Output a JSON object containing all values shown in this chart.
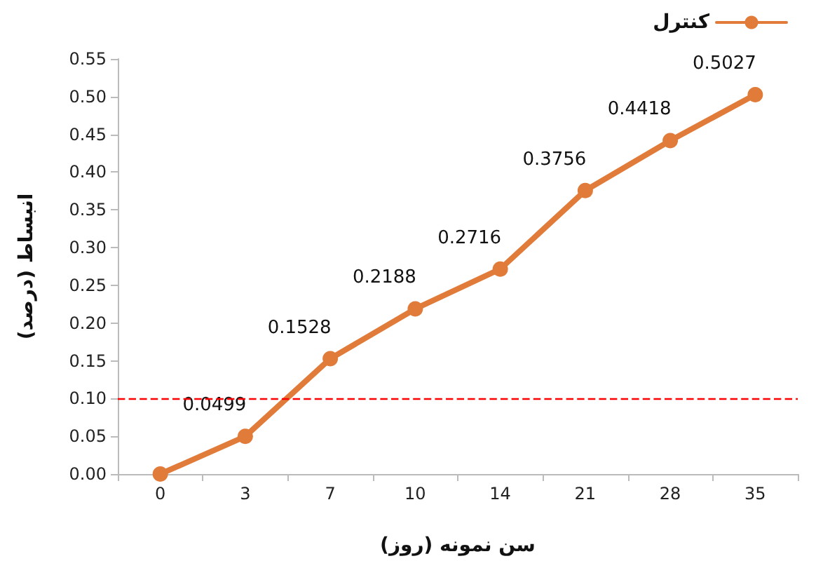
{
  "chart_data": {
    "type": "line",
    "xlabel": "سن نمونه (روز)",
    "ylabel": "انبساط (درصد)",
    "categories": [
      "0",
      "3",
      "7",
      "10",
      "14",
      "21",
      "28",
      "35"
    ],
    "series": [
      {
        "name": "کنترل",
        "color": "#e07b39",
        "values": [
          0,
          0.0499,
          0.1528,
          0.2188,
          0.2716,
          0.3756,
          0.4418,
          0.5027
        ],
        "value_labels": [
          null,
          "0.0499",
          "0.1528",
          "0.2188",
          "0.2716",
          "0.3756",
          "0.4418",
          "0.5027"
        ]
      }
    ],
    "ylim": [
      0,
      0.55
    ],
    "yticks": [
      {
        "value": 0,
        "label": "0.00"
      },
      {
        "value": 0.05,
        "label": "0.05"
      },
      {
        "value": 0.1,
        "label": "0.10"
      },
      {
        "value": 0.15,
        "label": "0.15"
      },
      {
        "value": 0.2,
        "label": "0.20"
      },
      {
        "value": 0.25,
        "label": "0.25"
      },
      {
        "value": 0.3,
        "label": "0.30"
      },
      {
        "value": 0.35,
        "label": "0.35"
      },
      {
        "value": 0.4,
        "label": "0.40"
      },
      {
        "value": 0.45,
        "label": "0.45"
      },
      {
        "value": 0.5,
        "label": "0.50"
      },
      {
        "value": 0.55,
        "label": "0.55"
      }
    ],
    "ref_lines": [
      {
        "axis": "y",
        "value": 0.1,
        "color": "#ff0000",
        "line_style": "dashed"
      }
    ],
    "grid": false,
    "legend": "top right",
    "marker": "circle",
    "line_style": "solid"
  }
}
